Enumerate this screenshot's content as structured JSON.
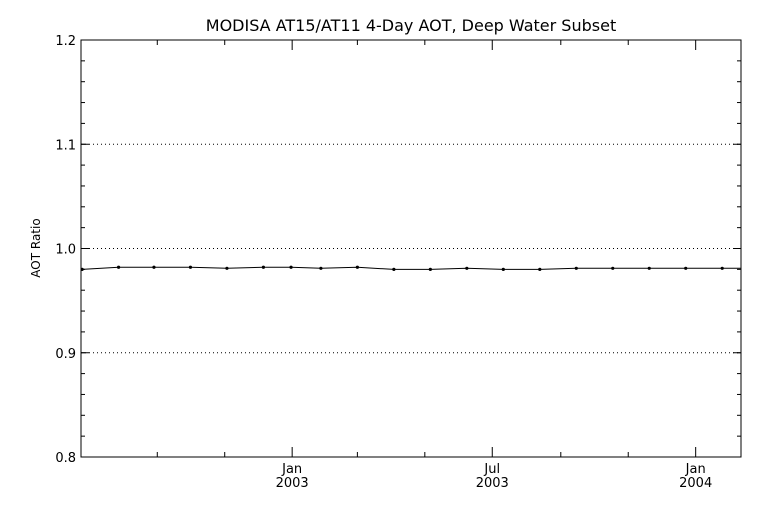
{
  "chart_data": {
    "type": "line",
    "title": "MODISA AT15/AT11 4-Day AOT, Deep Water Subset",
    "xlabel": "",
    "ylabel": "AOT Ratio",
    "xlim": [
      "2002-06-24",
      "2004-02-11"
    ],
    "ylim": [
      0.8,
      1.2
    ],
    "y_ticks": [
      {
        "value": 0.8,
        "label": "0.8"
      },
      {
        "value": 0.9,
        "label": "0.9"
      },
      {
        "value": 1.0,
        "label": "1.0"
      },
      {
        "value": 1.1,
        "label": "1.1"
      },
      {
        "value": 1.2,
        "label": "1.2"
      }
    ],
    "y_gridlines": [
      0.9,
      1.0,
      1.1
    ],
    "x_major_ticks": [
      {
        "date": "2003-01-01",
        "label": [
          "Jan",
          "2003"
        ]
      },
      {
        "date": "2003-07-01",
        "label": [
          "Jul",
          "2003"
        ]
      },
      {
        "date": "2004-01-01",
        "label": [
          "Jan",
          "2004"
        ]
      }
    ],
    "x_minor_ticks": [
      "2002-09-01",
      "2002-11-01",
      "2003-03-01",
      "2003-05-01",
      "2003-09-01",
      "2003-11-01"
    ],
    "series": [
      {
        "x": [
          "2002-06-25",
          "2002-07-28",
          "2002-08-29",
          "2002-10-01",
          "2002-11-03",
          "2002-12-06",
          "2002-12-31",
          "2003-01-27",
          "2003-03-01",
          "2003-04-03",
          "2003-05-06",
          "2003-06-08",
          "2003-07-11",
          "2003-08-13",
          "2003-09-15",
          "2003-10-18",
          "2003-11-20",
          "2003-12-23",
          "2004-01-25"
        ],
        "y": [
          0.98,
          0.982,
          0.982,
          0.982,
          0.981,
          0.982,
          0.982,
          0.981,
          0.982,
          0.98,
          0.98,
          0.981,
          0.98,
          0.98,
          0.981,
          0.981,
          0.981,
          0.981,
          0.981
        ]
      }
    ]
  }
}
